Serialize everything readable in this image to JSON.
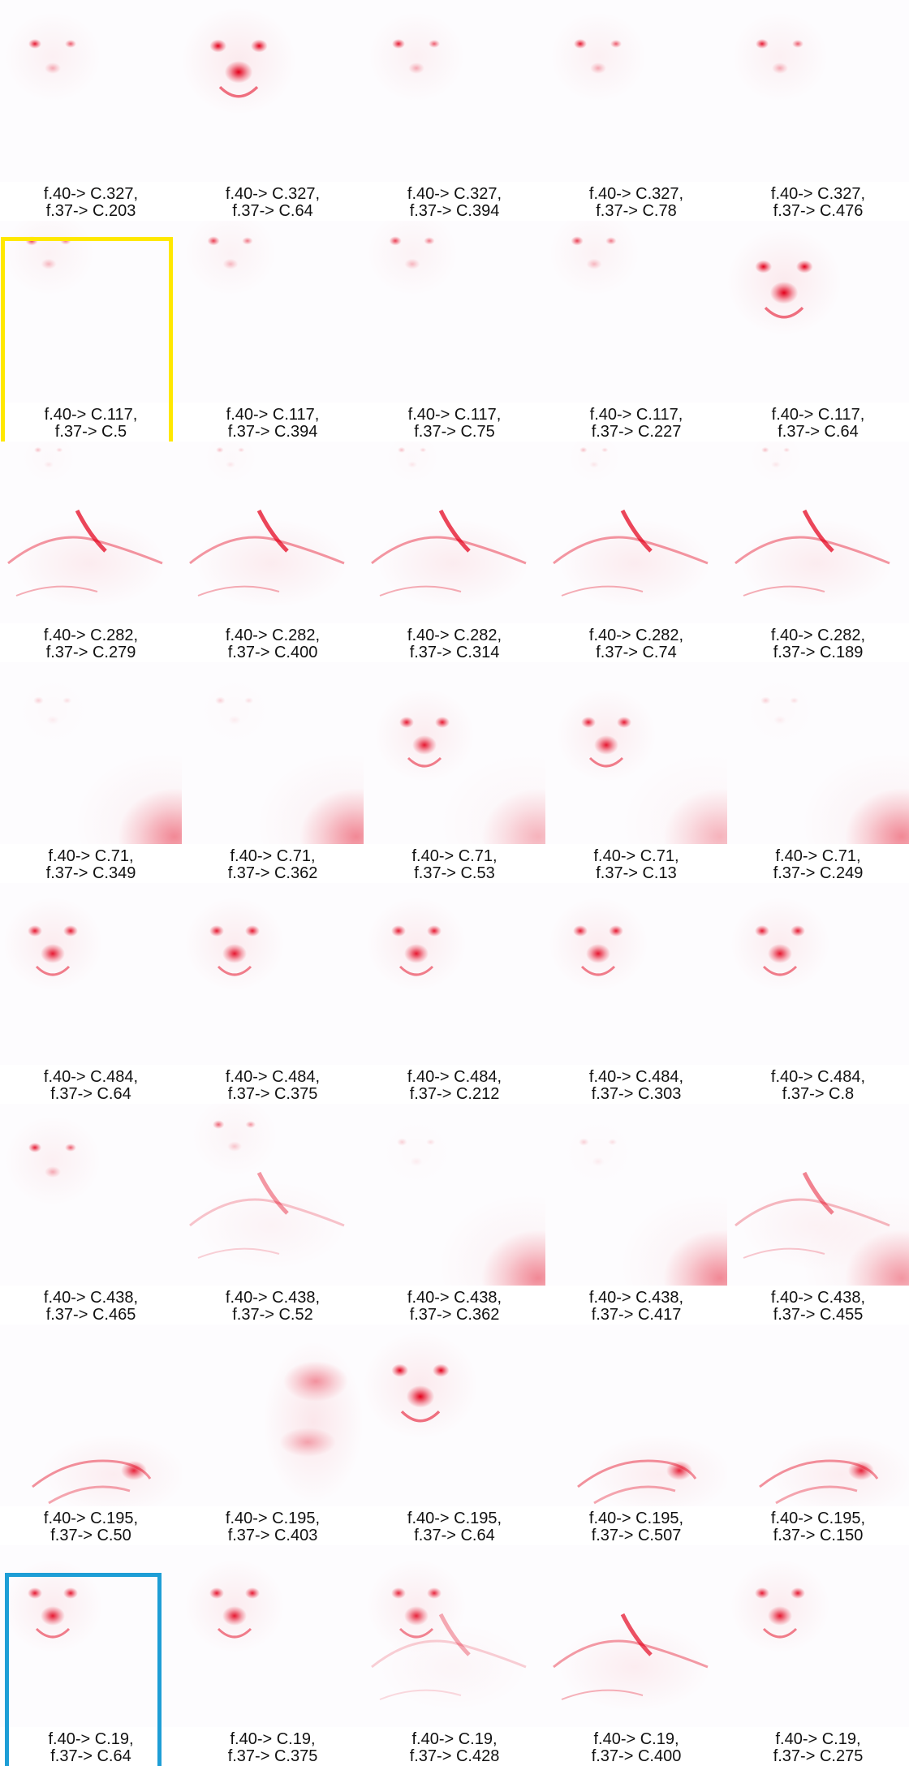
{
  "colors": {
    "heat": "#e3001b",
    "highlight_yellow": "#ffe800",
    "highlight_blue": "#1e9ed6",
    "background": "#ffffff",
    "tile_bg": "#fdfcfe"
  },
  "rows": [
    {
      "source": "f.40-> C.327,",
      "cells": [
        {
          "target": "f.37-> C.203",
          "pattern": "eyes"
        },
        {
          "target": "f.37-> C.64",
          "pattern": "face-strong"
        },
        {
          "target": "f.37-> C.394",
          "pattern": "eyes"
        },
        {
          "target": "f.37-> C.78",
          "pattern": "eyes"
        },
        {
          "target": "f.37-> C.476",
          "pattern": "eyes"
        }
      ]
    },
    {
      "source": "f.40-> C.117,",
      "cells": [
        {
          "target": "f.37-> C.5",
          "pattern": "eyes-faint",
          "highlight": "yellow"
        },
        {
          "target": "f.37-> C.394",
          "pattern": "eyes-faint"
        },
        {
          "target": "f.37-> C.75",
          "pattern": "eyes-faint"
        },
        {
          "target": "f.37-> C.227",
          "pattern": "eyes-faint"
        },
        {
          "target": "f.37-> C.64",
          "pattern": "face-strong"
        }
      ]
    },
    {
      "source": "f.40-> C.282,",
      "cells": [
        {
          "target": "f.37-> C.279",
          "pattern": "body"
        },
        {
          "target": "f.37-> C.400",
          "pattern": "body"
        },
        {
          "target": "f.37-> C.314",
          "pattern": "body"
        },
        {
          "target": "f.37-> C.74",
          "pattern": "body"
        },
        {
          "target": "f.37-> C.189",
          "pattern": "body"
        }
      ]
    },
    {
      "source": "f.40-> C.71,",
      "cells": [
        {
          "target": "f.37-> C.349",
          "pattern": "corner"
        },
        {
          "target": "f.37-> C.362",
          "pattern": "corner"
        },
        {
          "target": "f.37-> C.53",
          "pattern": "face-corner"
        },
        {
          "target": "f.37-> C.13",
          "pattern": "face-corner"
        },
        {
          "target": "f.37-> C.249",
          "pattern": "corner"
        }
      ]
    },
    {
      "source": "f.40-> C.484,",
      "cells": [
        {
          "target": "f.37-> C.64",
          "pattern": "face"
        },
        {
          "target": "f.37-> C.375",
          "pattern": "face"
        },
        {
          "target": "f.37-> C.212",
          "pattern": "face"
        },
        {
          "target": "f.37-> C.303",
          "pattern": "face"
        },
        {
          "target": "f.37-> C.8",
          "pattern": "face"
        }
      ]
    },
    {
      "source": "f.40-> C.438,",
      "cells": [
        {
          "target": "f.37-> C.465",
          "pattern": "eyes"
        },
        {
          "target": "f.37-> C.52",
          "pattern": "eyes-body"
        },
        {
          "target": "f.37-> C.362",
          "pattern": "corner"
        },
        {
          "target": "f.37-> C.417",
          "pattern": "corner"
        },
        {
          "target": "f.37-> C.455",
          "pattern": "body-corner"
        }
      ]
    },
    {
      "source": "f.40-> C.195,",
      "cells": [
        {
          "target": "f.37-> C.50",
          "pattern": "paw"
        },
        {
          "target": "f.37-> C.403",
          "pattern": "blob"
        },
        {
          "target": "f.37-> C.64",
          "pattern": "face-strong"
        },
        {
          "target": "f.37-> C.507",
          "pattern": "paw"
        },
        {
          "target": "f.37-> C.150",
          "pattern": "paw"
        }
      ]
    },
    {
      "source": "f.40-> C.19,",
      "cells": [
        {
          "target": "f.37-> C.64",
          "pattern": "face",
          "highlight": "blue"
        },
        {
          "target": "f.37-> C.375",
          "pattern": "face"
        },
        {
          "target": "f.37-> C.428",
          "pattern": "face-body"
        },
        {
          "target": "f.37-> C.400",
          "pattern": "body-low"
        },
        {
          "target": "f.37-> C.275",
          "pattern": "face"
        }
      ]
    }
  ]
}
